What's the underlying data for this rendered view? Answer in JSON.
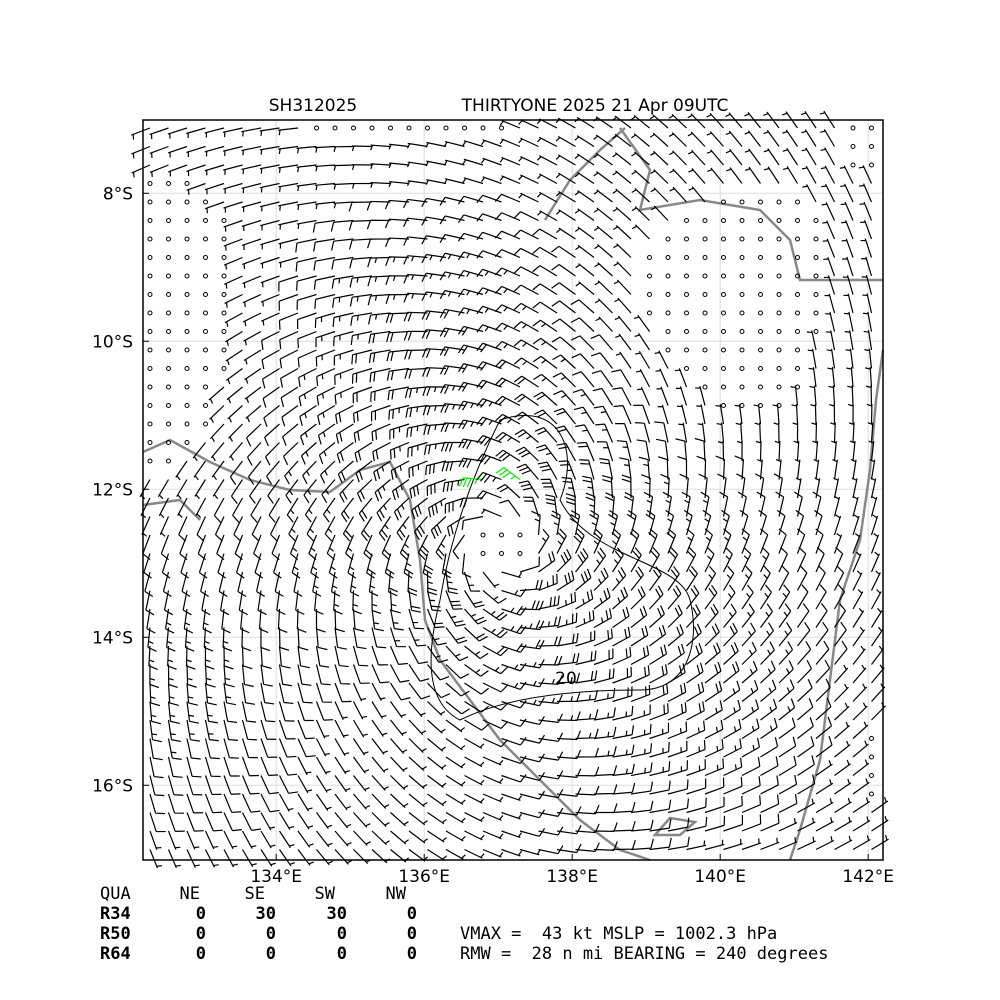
{
  "map": {
    "title_left": "SH312025",
    "title_right": "THIRTYONE 2025 21 Apr 09UTC",
    "xlim": [
      132.2,
      142.2
    ],
    "ylim": [
      -17.01,
      -7.01
    ],
    "xticks": [
      {
        "value": 134,
        "label": "134°E"
      },
      {
        "value": 136,
        "label": "136°E"
      },
      {
        "value": 138,
        "label": "138°E"
      },
      {
        "value": 140,
        "label": "140°E"
      },
      {
        "value": 142,
        "label": "142°E"
      }
    ],
    "yticks": [
      {
        "value": -8,
        "label": "8°S"
      },
      {
        "value": -10,
        "label": "10°S"
      },
      {
        "value": -12,
        "label": "12°S"
      },
      {
        "value": -14,
        "label": "14°S"
      },
      {
        "value": -16,
        "label": "16°S"
      }
    ],
    "grid": true,
    "contour_label": "20"
  },
  "table": {
    "header": [
      "QUA",
      "NE",
      "SE",
      "SW",
      "NW"
    ],
    "rows": [
      [
        "R34",
        "0",
        "30",
        "30",
        "0"
      ],
      [
        "R50",
        "0",
        "0",
        "0",
        "0"
      ],
      [
        "R64",
        "0",
        "0",
        "0",
        "0"
      ]
    ]
  },
  "info": [
    "VMAX =  43 kt MSLP = 1002.3 hPa",
    "RMW =  28 n mi BEARING = 240 degrees"
  ]
}
